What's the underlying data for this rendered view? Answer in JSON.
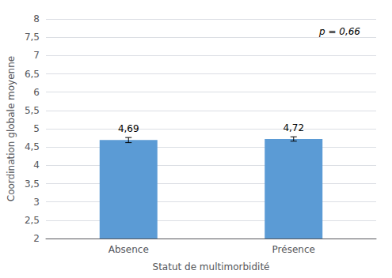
{
  "chart_data": {
    "type": "bar",
    "categories": [
      "Absence",
      "Présence"
    ],
    "values": [
      4.69,
      4.72
    ],
    "errors": [
      0.07,
      0.06
    ],
    "value_labels": [
      "4,69",
      "4,72"
    ],
    "data_labels": true,
    "color": "#5b9bd5",
    "ylim": [
      2,
      8
    ],
    "yticks": [
      2,
      {
        "value": 2.5,
        "label": "2,5"
      },
      3,
      {
        "value": 3.5,
        "label": "3,5"
      },
      4,
      {
        "value": 4.5,
        "label": "4,5"
      },
      5,
      {
        "value": 5.5,
        "label": "5,5"
      },
      6,
      {
        "value": 6.5,
        "label": "6,5"
      },
      7,
      {
        "value": 7.5,
        "label": "7,5"
      },
      8
    ],
    "ylabel": "Coordination globale moyenne",
    "xlabel": "Statut de multimorbidité",
    "annotations": [
      "p = 0,66"
    ],
    "grid": true
  }
}
